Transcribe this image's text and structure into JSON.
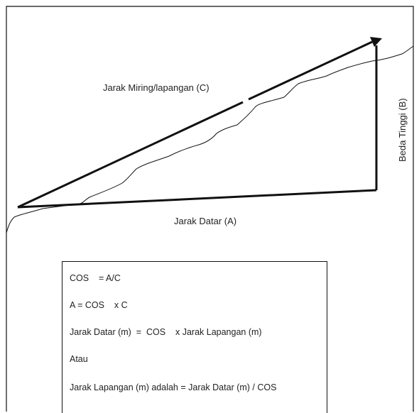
{
  "labels": {
    "slope": "Jarak Miring/lapangan (C)",
    "height": "Beda Tinggi (B)",
    "horizontal": "Jarak Datar (A)"
  },
  "formulas": [
    "COS    = A/C",
    "A = COS    x C",
    "Jarak Datar (m)  =  COS    x Jarak Lapangan (m)",
    "Atau",
    "Jarak Lapangan (m) adalah = Jarak Datar (m) / COS"
  ],
  "colors": {
    "line": "#111111",
    "text": "#222222"
  }
}
